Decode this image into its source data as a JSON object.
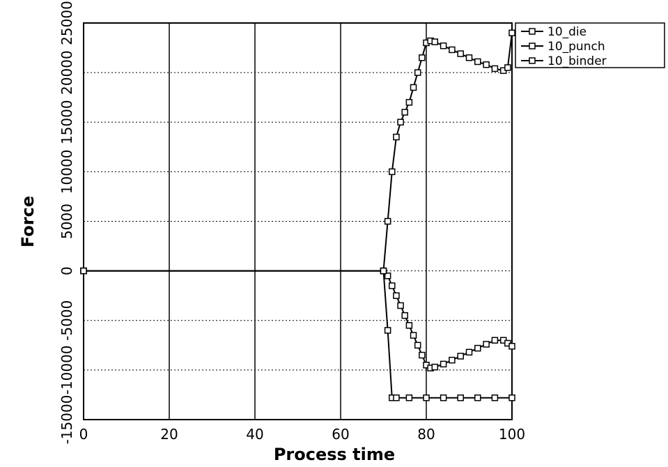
{
  "chart_data": {
    "type": "line",
    "x_label": "Process time",
    "y_label": "Force",
    "xlim": [
      0,
      100
    ],
    "xticks": [
      0,
      20,
      40,
      60,
      80,
      100
    ],
    "ylim": [
      -15000,
      25000
    ],
    "yticks": [
      -15000,
      -10000,
      -5000,
      0,
      5000,
      10000,
      15000,
      20000,
      25000
    ],
    "grid": true,
    "legend": "upper right",
    "series": [
      {
        "name": "10_die",
        "color": "#000000",
        "x": [
          0,
          70,
          71,
          72,
          73,
          74,
          75,
          76,
          77,
          78,
          79,
          80,
          81,
          82,
          84,
          86,
          88,
          90,
          92,
          94,
          96,
          98,
          99,
          100
        ],
        "values": [
          0,
          0,
          5000,
          10000,
          13500,
          15000,
          16000,
          17000,
          18500,
          20000,
          21500,
          23000,
          23200,
          23100,
          22700,
          22300,
          21900,
          21500,
          21100,
          20800,
          20400,
          20200,
          20500,
          24000
        ]
      },
      {
        "name": "10_punch",
        "color": "#000000",
        "x": [
          0,
          70,
          71,
          72,
          73,
          74,
          75,
          76,
          77,
          78,
          79,
          80,
          81,
          82,
          84,
          86,
          88,
          90,
          92,
          94,
          96,
          98,
          99,
          100
        ],
        "values": [
          0,
          0,
          -500,
          -1500,
          -2500,
          -3500,
          -4500,
          -5500,
          -6500,
          -7500,
          -8500,
          -9500,
          -9800,
          -9700,
          -9400,
          -9000,
          -8600,
          -8200,
          -7800,
          -7400,
          -7000,
          -7000,
          -7300,
          -7600
        ]
      },
      {
        "name": "10_binder",
        "color": "#000000",
        "x": [
          0,
          70,
          71,
          72,
          73,
          76,
          80,
          84,
          88,
          92,
          96,
          100
        ],
        "values": [
          0,
          0,
          -6000,
          -12800,
          -12800,
          -12800,
          -12800,
          -12800,
          -12800,
          -12800,
          -12800,
          -12800
        ]
      }
    ]
  }
}
